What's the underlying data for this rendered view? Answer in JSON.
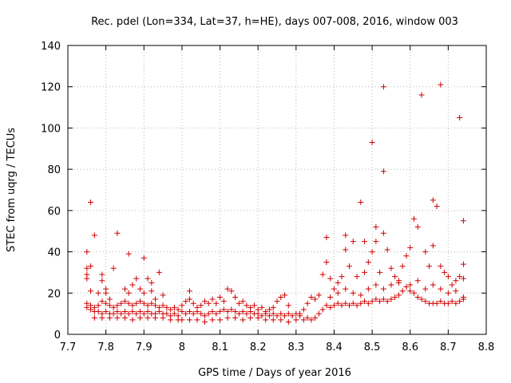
{
  "chart_data": {
    "type": "scatter",
    "title": "Rec. pdel (Lon=334, Lat=37, h=HE), days 007-008, 2016, window 003",
    "xlabel": "GPS time / Days of year 2016",
    "ylabel": "STEC from uqrg / TECUs",
    "xlim": [
      7.7,
      8.8
    ],
    "ylim": [
      0,
      140
    ],
    "xticks": [
      7.7,
      7.8,
      7.9,
      8.0,
      8.1,
      8.2,
      8.3,
      8.4,
      8.5,
      8.6,
      8.7,
      8.8
    ],
    "xtick_labels": [
      "7.7",
      "7.8",
      "7.9",
      "8",
      "8.1",
      "8.2",
      "8.3",
      "8.4",
      "8.5",
      "8.6",
      "8.7",
      "8.8"
    ],
    "yticks": [
      0,
      20,
      40,
      60,
      80,
      100,
      120,
      140
    ],
    "ytick_labels": [
      "0",
      "20",
      "40",
      "60",
      "80",
      "100",
      "120",
      "140"
    ],
    "grid": true,
    "marker": "+",
    "color": "#d00000",
    "series": [
      {
        "name": "STEC",
        "points": [
          [
            7.75,
            40
          ],
          [
            7.75,
            32
          ],
          [
            7.75,
            29
          ],
          [
            7.75,
            27
          ],
          [
            7.76,
            64
          ],
          [
            7.76,
            33
          ],
          [
            7.76,
            21
          ],
          [
            7.77,
            48
          ],
          [
            7.78,
            20
          ],
          [
            7.79,
            29
          ],
          [
            7.79,
            26
          ],
          [
            7.8,
            22
          ],
          [
            7.8,
            20
          ],
          [
            7.81,
            17
          ],
          [
            7.82,
            32
          ],
          [
            7.83,
            49
          ],
          [
            7.86,
            39
          ],
          [
            7.85,
            22
          ],
          [
            7.86,
            20
          ],
          [
            7.87,
            24
          ],
          [
            7.88,
            27
          ],
          [
            7.89,
            22
          ],
          [
            7.9,
            37
          ],
          [
            7.9,
            20
          ],
          [
            7.91,
            27
          ],
          [
            7.92,
            25
          ],
          [
            7.92,
            21
          ],
          [
            7.93,
            17
          ],
          [
            7.94,
            30
          ],
          [
            7.95,
            19
          ],
          [
            7.75,
            15
          ],
          [
            7.76,
            14
          ],
          [
            7.77,
            13
          ],
          [
            7.78,
            14
          ],
          [
            7.79,
            16
          ],
          [
            7.8,
            15
          ],
          [
            7.81,
            14
          ],
          [
            7.82,
            13
          ],
          [
            7.83,
            14
          ],
          [
            7.84,
            15
          ],
          [
            7.85,
            16
          ],
          [
            7.86,
            15
          ],
          [
            7.87,
            14
          ],
          [
            7.88,
            15
          ],
          [
            7.89,
            16
          ],
          [
            7.9,
            15
          ],
          [
            7.91,
            14
          ],
          [
            7.92,
            15
          ],
          [
            7.93,
            14
          ],
          [
            7.94,
            13
          ],
          [
            7.95,
            14
          ],
          [
            7.96,
            13
          ],
          [
            7.97,
            12
          ],
          [
            7.98,
            13
          ],
          [
            7.99,
            12
          ],
          [
            7.75,
            13
          ],
          [
            7.76,
            12
          ],
          [
            7.77,
            11
          ],
          [
            7.78,
            11
          ],
          [
            7.79,
            10
          ],
          [
            7.8,
            11
          ],
          [
            7.81,
            10
          ],
          [
            7.82,
            10
          ],
          [
            7.83,
            11
          ],
          [
            7.84,
            10
          ],
          [
            7.85,
            11
          ],
          [
            7.86,
            10
          ],
          [
            7.87,
            11
          ],
          [
            7.88,
            10
          ],
          [
            7.89,
            11
          ],
          [
            7.9,
            10
          ],
          [
            7.91,
            11
          ],
          [
            7.92,
            10
          ],
          [
            7.93,
            10
          ],
          [
            7.94,
            11
          ],
          [
            7.95,
            10
          ],
          [
            7.96,
            10
          ],
          [
            7.97,
            9
          ],
          [
            7.98,
            10
          ],
          [
            7.99,
            9
          ],
          [
            7.77,
            8
          ],
          [
            7.79,
            8
          ],
          [
            7.81,
            8
          ],
          [
            7.83,
            8
          ],
          [
            7.85,
            8
          ],
          [
            7.87,
            7
          ],
          [
            7.89,
            8
          ],
          [
            7.91,
            8
          ],
          [
            7.93,
            8
          ],
          [
            7.95,
            8
          ],
          [
            7.97,
            7
          ],
          [
            7.99,
            7
          ],
          [
            8.0,
            14
          ],
          [
            8.01,
            16
          ],
          [
            8.02,
            21
          ],
          [
            8.02,
            17
          ],
          [
            8.03,
            15
          ],
          [
            8.04,
            13
          ],
          [
            8.05,
            14
          ],
          [
            8.06,
            16
          ],
          [
            8.07,
            15
          ],
          [
            8.08,
            17
          ],
          [
            8.09,
            15
          ],
          [
            8.1,
            18
          ],
          [
            8.11,
            16
          ],
          [
            8.12,
            22
          ],
          [
            8.13,
            21
          ],
          [
            8.14,
            18
          ],
          [
            8.15,
            15
          ],
          [
            8.16,
            16
          ],
          [
            8.17,
            14
          ],
          [
            8.18,
            13
          ],
          [
            8.19,
            14
          ],
          [
            8.2,
            12
          ],
          [
            8.21,
            13
          ],
          [
            8.22,
            11
          ],
          [
            8.23,
            12
          ],
          [
            8.24,
            13
          ],
          [
            8.25,
            16
          ],
          [
            8.26,
            18
          ],
          [
            8.27,
            19
          ],
          [
            8.28,
            14
          ],
          [
            8.0,
            11
          ],
          [
            8.01,
            10
          ],
          [
            8.02,
            11
          ],
          [
            8.03,
            10
          ],
          [
            8.04,
            11
          ],
          [
            8.05,
            10
          ],
          [
            8.06,
            9
          ],
          [
            8.07,
            10
          ],
          [
            8.08,
            11
          ],
          [
            8.09,
            10
          ],
          [
            8.1,
            11
          ],
          [
            8.11,
            12
          ],
          [
            8.12,
            11
          ],
          [
            8.13,
            12
          ],
          [
            8.14,
            11
          ],
          [
            8.15,
            10
          ],
          [
            8.16,
            11
          ],
          [
            8.17,
            10
          ],
          [
            8.18,
            11
          ],
          [
            8.19,
            10
          ],
          [
            8.2,
            10
          ],
          [
            8.21,
            9
          ],
          [
            8.22,
            10
          ],
          [
            8.23,
            9
          ],
          [
            8.24,
            10
          ],
          [
            8.25,
            9
          ],
          [
            8.26,
            10
          ],
          [
            8.27,
            9
          ],
          [
            8.28,
            10
          ],
          [
            8.29,
            9
          ],
          [
            8.3,
            10
          ],
          [
            8.0,
            7
          ],
          [
            8.02,
            7
          ],
          [
            8.04,
            7
          ],
          [
            8.06,
            6
          ],
          [
            8.08,
            7
          ],
          [
            8.1,
            7
          ],
          [
            8.12,
            8
          ],
          [
            8.14,
            8
          ],
          [
            8.16,
            7
          ],
          [
            8.18,
            8
          ],
          [
            8.2,
            8
          ],
          [
            8.22,
            7
          ],
          [
            8.24,
            7
          ],
          [
            8.26,
            7
          ],
          [
            8.28,
            6
          ],
          [
            8.3,
            7
          ],
          [
            8.32,
            7
          ],
          [
            8.34,
            7
          ],
          [
            8.31,
            10
          ],
          [
            8.32,
            12
          ],
          [
            8.33,
            15
          ],
          [
            8.34,
            18
          ],
          [
            8.35,
            17
          ],
          [
            8.36,
            19
          ],
          [
            8.37,
            29
          ],
          [
            8.38,
            47
          ],
          [
            8.38,
            35
          ],
          [
            8.39,
            27
          ],
          [
            8.4,
            22
          ],
          [
            8.41,
            25
          ],
          [
            8.42,
            28
          ],
          [
            8.43,
            48
          ],
          [
            8.43,
            41
          ],
          [
            8.44,
            33
          ],
          [
            8.45,
            45
          ],
          [
            8.46,
            28
          ],
          [
            8.47,
            64
          ],
          [
            8.48,
            45
          ],
          [
            8.48,
            30
          ],
          [
            8.49,
            35
          ],
          [
            8.5,
            93
          ],
          [
            8.5,
            40
          ],
          [
            8.51,
            52
          ],
          [
            8.51,
            45
          ],
          [
            8.52,
            30
          ],
          [
            8.53,
            120
          ],
          [
            8.53,
            79
          ],
          [
            8.53,
            49
          ],
          [
            8.31,
            9
          ],
          [
            8.33,
            8
          ],
          [
            8.35,
            8
          ],
          [
            8.36,
            10
          ],
          [
            8.37,
            12
          ],
          [
            8.38,
            14
          ],
          [
            8.39,
            13
          ],
          [
            8.4,
            14
          ],
          [
            8.41,
            15
          ],
          [
            8.42,
            14
          ],
          [
            8.43,
            15
          ],
          [
            8.44,
            14
          ],
          [
            8.45,
            15
          ],
          [
            8.46,
            14
          ],
          [
            8.47,
            15
          ],
          [
            8.48,
            16
          ],
          [
            8.49,
            15
          ],
          [
            8.5,
            16
          ],
          [
            8.51,
            17
          ],
          [
            8.52,
            16
          ],
          [
            8.53,
            17
          ],
          [
            8.54,
            16
          ],
          [
            8.55,
            17
          ],
          [
            8.56,
            18
          ],
          [
            8.57,
            19
          ],
          [
            8.58,
            21
          ],
          [
            8.59,
            23
          ],
          [
            8.39,
            18
          ],
          [
            8.41,
            20
          ],
          [
            8.43,
            22
          ],
          [
            8.45,
            20
          ],
          [
            8.47,
            19
          ],
          [
            8.49,
            22
          ],
          [
            8.51,
            24
          ],
          [
            8.53,
            22
          ],
          [
            8.55,
            24
          ],
          [
            8.57,
            26
          ],
          [
            8.54,
            41
          ],
          [
            8.55,
            32
          ],
          [
            8.56,
            28
          ],
          [
            8.57,
            25
          ],
          [
            8.58,
            33
          ],
          [
            8.59,
            38
          ],
          [
            8.6,
            42
          ],
          [
            8.61,
            56
          ],
          [
            8.62,
            52
          ],
          [
            8.63,
            116
          ],
          [
            8.64,
            40
          ],
          [
            8.65,
            33
          ],
          [
            8.66,
            65
          ],
          [
            8.66,
            43
          ],
          [
            8.67,
            62
          ],
          [
            8.68,
            121
          ],
          [
            8.68,
            33
          ],
          [
            8.69,
            30
          ],
          [
            8.7,
            28
          ],
          [
            8.71,
            24
          ],
          [
            8.72,
            26
          ],
          [
            8.73,
            105
          ],
          [
            8.73,
            28
          ],
          [
            8.74,
            55
          ],
          [
            8.74,
            34
          ],
          [
            8.74,
            27
          ],
          [
            8.6,
            21
          ],
          [
            8.61,
            20
          ],
          [
            8.62,
            18
          ],
          [
            8.63,
            17
          ],
          [
            8.64,
            16
          ],
          [
            8.65,
            15
          ],
          [
            8.66,
            15
          ],
          [
            8.67,
            15
          ],
          [
            8.68,
            16
          ],
          [
            8.69,
            15
          ],
          [
            8.7,
            15
          ],
          [
            8.71,
            16
          ],
          [
            8.72,
            15
          ],
          [
            8.73,
            16
          ],
          [
            8.74,
            17
          ],
          [
            8.6,
            24
          ],
          [
            8.62,
            26
          ],
          [
            8.64,
            22
          ],
          [
            8.66,
            24
          ],
          [
            8.68,
            22
          ],
          [
            8.7,
            20
          ],
          [
            8.72,
            21
          ],
          [
            8.74,
            18
          ]
        ]
      }
    ]
  }
}
